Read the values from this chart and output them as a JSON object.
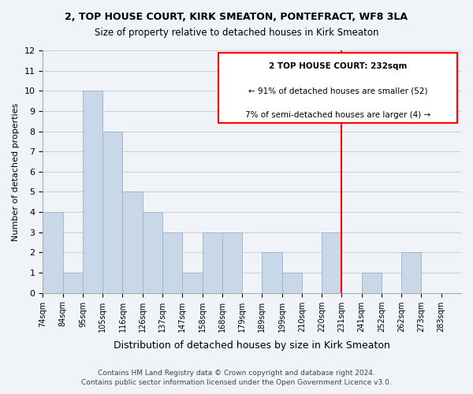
{
  "title1": "2, TOP HOUSE COURT, KIRK SMEATON, PONTEFRACT, WF8 3LA",
  "title2": "Size of property relative to detached houses in Kirk Smeaton",
  "xlabel": "Distribution of detached houses by size in Kirk Smeaton",
  "ylabel": "Number of detached properties",
  "bins": [
    "74sqm",
    "84sqm",
    "95sqm",
    "105sqm",
    "116sqm",
    "126sqm",
    "137sqm",
    "147sqm",
    "158sqm",
    "168sqm",
    "179sqm",
    "189sqm",
    "199sqm",
    "210sqm",
    "220sqm",
    "231sqm",
    "241sqm",
    "252sqm",
    "262sqm",
    "273sqm",
    "283sqm"
  ],
  "values": [
    4,
    1,
    10,
    8,
    5,
    4,
    3,
    1,
    3,
    3,
    0,
    2,
    1,
    0,
    3,
    0,
    1,
    0,
    2,
    0
  ],
  "bar_color": "#c8d8e8",
  "bar_edge_color": "#a0b8cc",
  "grid_color": "#cccccc",
  "vline_x": 15,
  "vline_color": "red",
  "annotation_title": "2 TOP HOUSE COURT: 232sqm",
  "annotation_line1": "← 91% of detached houses are smaller (52)",
  "annotation_line2": "7% of semi-detached houses are larger (4) →",
  "annotation_box_color": "#ffffff",
  "annotation_box_edge": "red",
  "ylim": [
    0,
    12
  ],
  "yticks": [
    0,
    1,
    2,
    3,
    4,
    5,
    6,
    7,
    8,
    9,
    10,
    11,
    12
  ],
  "footer1": "Contains HM Land Registry data © Crown copyright and database right 2024.",
  "footer2": "Contains public sector information licensed under the Open Government Licence v3.0.",
  "bg_color": "#f0f4f8"
}
